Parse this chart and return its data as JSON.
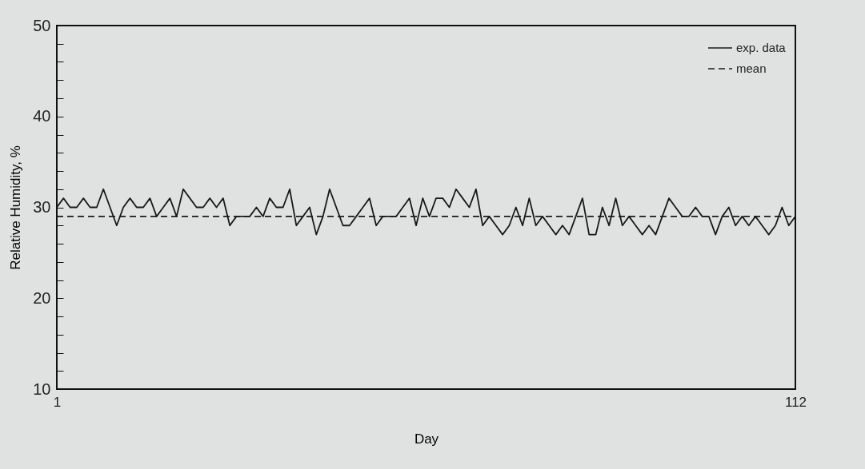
{
  "chart_data": {
    "type": "line",
    "xlabel": "Day",
    "ylabel": "Relative Humidity, %",
    "xlim": [
      1,
      112
    ],
    "xticks": [
      1,
      112
    ],
    "ylim": [
      10,
      50
    ],
    "yticks": [
      10,
      {
        "value": 12,
        "label": null
      },
      {
        "value": 14,
        "label": null
      },
      {
        "value": 16,
        "label": null
      },
      {
        "value": 18,
        "label": null
      },
      20,
      {
        "value": 22,
        "label": null
      },
      {
        "value": 24,
        "label": null
      },
      {
        "value": 26,
        "label": null
      },
      {
        "value": 28,
        "label": null
      },
      30,
      {
        "value": 32,
        "label": null
      },
      {
        "value": 34,
        "label": null
      },
      {
        "value": 36,
        "label": null
      },
      {
        "value": 38,
        "label": null
      },
      40,
      {
        "value": 42,
        "label": null
      },
      {
        "value": 44,
        "label": null
      },
      {
        "value": 46,
        "label": null
      },
      {
        "value": 48,
        "label": null
      },
      50
    ],
    "grid": false,
    "legend": "top right",
    "marker": "none",
    "series": [
      {
        "name": "exp. data",
        "color": "#1a1a1a",
        "line_style": "solid",
        "x": [
          1,
          2,
          3,
          4,
          5,
          6,
          7,
          8,
          9,
          10,
          11,
          12,
          13,
          14,
          15,
          16,
          17,
          18,
          19,
          20,
          21,
          22,
          23,
          24,
          25,
          26,
          27,
          28,
          29,
          30,
          31,
          32,
          33,
          34,
          35,
          36,
          37,
          38,
          39,
          40,
          41,
          42,
          43,
          44,
          45,
          46,
          47,
          48,
          49,
          50,
          51,
          52,
          53,
          54,
          55,
          56,
          57,
          58,
          59,
          60,
          61,
          62,
          63,
          64,
          65,
          66,
          67,
          68,
          69,
          70,
          71,
          72,
          73,
          74,
          75,
          76,
          77,
          78,
          79,
          80,
          81,
          82,
          83,
          84,
          85,
          86,
          87,
          88,
          89,
          90,
          91,
          92,
          93,
          94,
          95,
          96,
          97,
          98,
          99,
          100,
          101,
          102,
          103,
          104,
          105,
          106,
          107,
          108,
          109,
          110,
          111,
          112
        ],
        "values": [
          30,
          31,
          30,
          30,
          31,
          30,
          30,
          32,
          30,
          28,
          30,
          31,
          30,
          30,
          31,
          29,
          30,
          31,
          29,
          32,
          31,
          30,
          30,
          31,
          30,
          31,
          28,
          29,
          29,
          29,
          30,
          29,
          31,
          30,
          30,
          32,
          28,
          29,
          30,
          27,
          29,
          32,
          30,
          28,
          28,
          29,
          30,
          31,
          28,
          29,
          29,
          29,
          30,
          31,
          28,
          31,
          29,
          31,
          31,
          30,
          32,
          31,
          30,
          32,
          28,
          29,
          28,
          27,
          28,
          30,
          28,
          31,
          28,
          29,
          28,
          27,
          28,
          27,
          29,
          31,
          27,
          27,
          30,
          28,
          31,
          28,
          29,
          28,
          27,
          28,
          27,
          29,
          31,
          30,
          29,
          29,
          30,
          29,
          29,
          27,
          29,
          30,
          28,
          29,
          28,
          29,
          28,
          27,
          28,
          30,
          28,
          29
        ]
      },
      {
        "name": "mean",
        "color": "#1a1a1a",
        "line_style": "dashed",
        "x": [
          1,
          112
        ],
        "values": [
          29,
          29
        ]
      }
    ]
  }
}
